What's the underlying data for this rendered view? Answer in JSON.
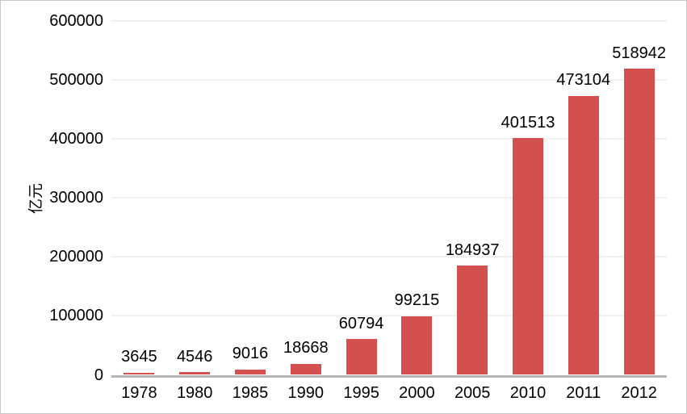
{
  "page": {
    "background": "#ffffff",
    "border_color": "#c8c8c8"
  },
  "chart_data": {
    "type": "bar",
    "title": "",
    "xlabel": "",
    "ylabel": "亿元",
    "categories": [
      "1978",
      "1980",
      "1985",
      "1990",
      "1995",
      "2000",
      "2005",
      "2010",
      "2011",
      "2012"
    ],
    "values": [
      3645,
      4546,
      9016,
      18668,
      60794,
      99215,
      184937,
      401513,
      473104,
      518942
    ],
    "ylim": [
      0,
      600000
    ],
    "yticks": [
      0,
      100000,
      200000,
      300000,
      400000,
      500000,
      600000
    ],
    "grid": true,
    "legend": "none",
    "data_labels": true,
    "bar_color": "#d4504e",
    "gridline_color": "#f0f0f0",
    "baseline_color": "#b5b5b5",
    "text_color": "#000000"
  }
}
